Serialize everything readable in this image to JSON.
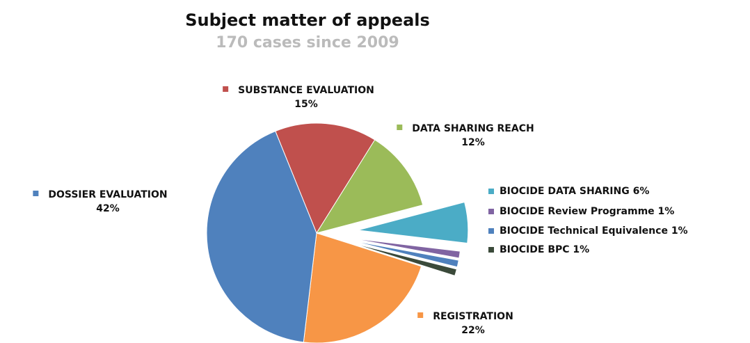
{
  "chart_data": {
    "type": "pie",
    "title": "Subject matter of appeals",
    "subtitle": "170 cases since 2009",
    "categories": [
      "SUBSTANCE EVALUATION",
      "DATA SHARING REACH",
      "BIOCIDE  DATA SHARING",
      "BIOCIDE  Review Programme",
      "BIOCIDE  Technical Equivalence",
      "BIOCIDE  BPC",
      "REGISTRATION",
      "DOSSIER EVALUATION"
    ],
    "values": [
      15,
      12,
      6,
      1,
      1,
      1,
      22,
      42
    ],
    "value_labels": [
      "15%",
      "12%",
      "6%",
      "1%",
      "1%",
      "1%",
      "22%",
      "42%"
    ],
    "colors": [
      "#c0504d",
      "#9bbb59",
      "#4bacc6",
      "#8064a2",
      "#4f81bd",
      "#3b4a3a",
      "#f79646",
      "#4f81bd"
    ]
  }
}
